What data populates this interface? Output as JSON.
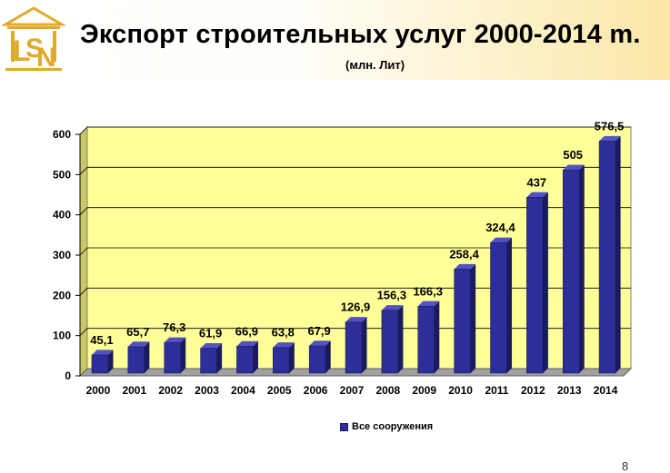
{
  "header": {
    "title": "Экспорт строительных услуг 2000-2014 m.",
    "subtitle": "(млн. Лит)",
    "logo_icon": "lsn-temple-logo-icon"
  },
  "page_number": "8",
  "colors": {
    "plot_background": "#ffff99",
    "bar_front": "#2e2e9a",
    "bar_top": "#5252c2",
    "bar_side": "#1a1a5e",
    "logo_gold": "#e0a92a"
  },
  "chart_data": {
    "type": "bar",
    "title": "",
    "xlabel": "",
    "ylabel": "",
    "categories": [
      "2000",
      "2001",
      "2002",
      "2003",
      "2004",
      "2005",
      "2006",
      "2007",
      "2008",
      "2009",
      "2010",
      "2011",
      "2012",
      "2013",
      "2014"
    ],
    "series": [
      {
        "name": "Все сооружения",
        "values": [
          45.1,
          65.7,
          76.3,
          61.9,
          66.9,
          63.8,
          67.9,
          126.9,
          156.3,
          166.3,
          258.4,
          324.4,
          437,
          505,
          576.5
        ],
        "labels": [
          "45,1",
          "65,7",
          "76,3",
          "61,9",
          "66,9",
          "63,8",
          "67,9",
          "126,9",
          "156,3",
          "166,3",
          "258,4",
          "324,4",
          "437",
          "505",
          "576,5"
        ]
      }
    ],
    "ylim": [
      0,
      600
    ],
    "yticks": [
      "0",
      "100",
      "200",
      "300",
      "400",
      "500",
      "600"
    ],
    "grid": true,
    "legend": "bottom"
  }
}
